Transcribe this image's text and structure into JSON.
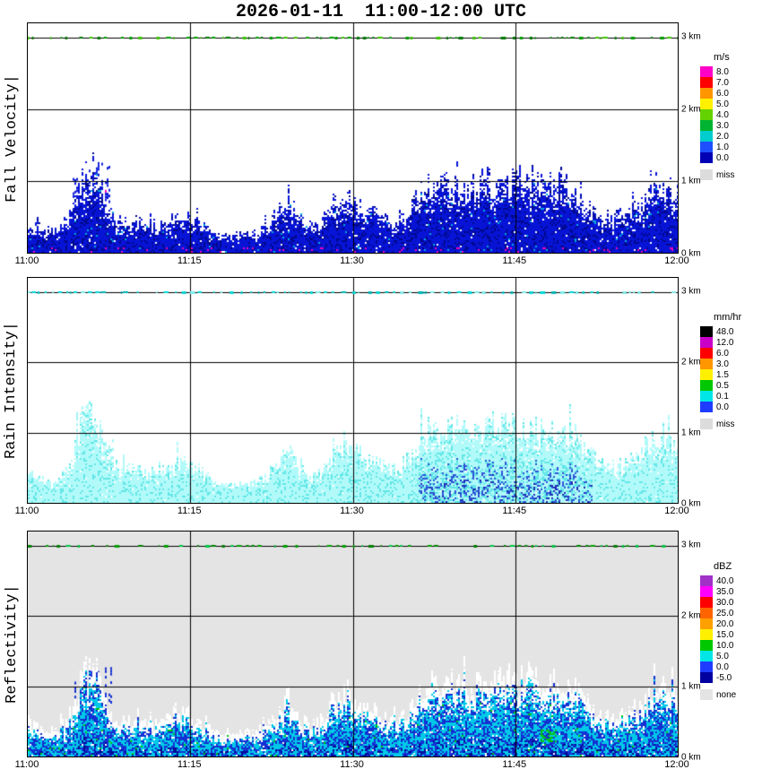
{
  "title": "2026-01-11  11:00-12:00 UTC",
  "chart_data": {
    "type": "heatmap",
    "description": "Micro rain radar time-height sections, three stacked panels sharing one time axis",
    "x_axis": {
      "ticks": [
        "11:00",
        "11:15",
        "11:30",
        "11:45",
        "12:00"
      ],
      "range_minutes": [
        0,
        60
      ],
      "grid_minutes": [
        15,
        30,
        45
      ]
    },
    "y_axis": {
      "ticks": [
        "0 km",
        "1 km",
        "2 km",
        "3 km"
      ],
      "max_km": 3.2,
      "grid_km": [
        1,
        2,
        3
      ]
    },
    "artifact_line_km": 3.0,
    "echo_top_km": [
      0.4,
      0.32,
      0.28,
      0.35,
      0.55,
      1.05,
      1.15,
      0.75,
      0.45,
      0.4,
      0.45,
      0.38,
      0.35,
      0.48,
      0.55,
      0.48,
      0.38,
      0.28,
      0.22,
      0.22,
      0.28,
      0.25,
      0.35,
      0.55,
      0.75,
      0.45,
      0.35,
      0.42,
      0.62,
      0.78,
      0.68,
      0.55,
      0.6,
      0.45,
      0.4,
      0.55,
      0.8,
      0.92,
      0.85,
      0.95,
      0.88,
      0.85,
      0.95,
      0.92,
      1.0,
      0.95,
      1.02,
      0.95,
      0.9,
      0.95,
      0.85,
      0.8,
      0.6,
      0.5,
      0.45,
      0.5,
      0.58,
      0.72,
      0.92,
      0.85,
      0.8
    ],
    "plume": {
      "start_min": 4.0,
      "end_min": 7.8,
      "top_km": 1.35
    },
    "panels": [
      {
        "name": "Fall Velocity",
        "ylabel": "Fall Velocity|",
        "unit": "m/s",
        "background": "#FFFFFF",
        "seed": 7,
        "env_scale": 1.0,
        "legend": [
          {
            "label": "8.0",
            "color": "#FF00C8"
          },
          {
            "label": "7.0",
            "color": "#FF0000"
          },
          {
            "label": "6.0",
            "color": "#FF9600"
          },
          {
            "label": "5.0",
            "color": "#FFF000"
          },
          {
            "label": "4.0",
            "color": "#64D200"
          },
          {
            "label": "3.0",
            "color": "#00B432"
          },
          {
            "label": "2.0",
            "color": "#00CDCD"
          },
          {
            "label": "1.0",
            "color": "#1E50FF"
          },
          {
            "label": "0.0",
            "color": "#0000B4"
          },
          {
            "label": "miss",
            "color": "#DCDCDC",
            "gap": true
          }
        ],
        "artifact_colors": [
          "#00A000",
          "#007800",
          "#3CC800"
        ],
        "style": {
          "mode": "velocity",
          "main": "#0714D6",
          "deep": "#00088C",
          "speck": "#00AADD",
          "hot": "#EE00BB",
          "plume": "#0F1EDC",
          "probs": [
            0.97,
            0.8,
            0.5
          ]
        }
      },
      {
        "name": "Rain Intensity",
        "ylabel": "Rain Intensity|",
        "unit": "mm/hr",
        "background": "#FFFFFF",
        "seed": 13,
        "env_scale": 1.06,
        "legend": [
          {
            "label": "48.0",
            "color": "#000000"
          },
          {
            "label": "12.0",
            "color": "#C800C8"
          },
          {
            "label": "6.0",
            "color": "#FF0000"
          },
          {
            "label": "3.0",
            "color": "#FF9600"
          },
          {
            "label": "1.5",
            "color": "#FFF000"
          },
          {
            "label": "0.5",
            "color": "#00C800"
          },
          {
            "label": "0.1",
            "color": "#00E6E6"
          },
          {
            "label": "0.0",
            "color": "#1E3CFF"
          },
          {
            "label": "miss",
            "color": "#DCDCDC",
            "gap": true
          }
        ],
        "artifact_colors": [
          "#00D8D8",
          "#7DEEEE",
          "#00B4B4"
        ],
        "style": {
          "mode": "rain",
          "main": "#B2FAFA",
          "mid": "#63E6E6",
          "core": "#2D55D8",
          "deep": "#1E2FB4",
          "plume": "#9FF4F4",
          "probs": [
            0.99,
            0.93,
            0.72
          ]
        }
      },
      {
        "name": "Reflectivity",
        "ylabel": "Reflectivity|",
        "unit": "dBZ",
        "background": "#E4E4E4",
        "seed": 21,
        "env_scale": 1.0,
        "legend": [
          {
            "label": "40.0",
            "color": "#A032C8"
          },
          {
            "label": "35.0",
            "color": "#FF00FF"
          },
          {
            "label": "30.0",
            "color": "#FF0000"
          },
          {
            "label": "25.0",
            "color": "#FF6400"
          },
          {
            "label": "20.0",
            "color": "#FFA000"
          },
          {
            "label": "15.0",
            "color": "#FFF000"
          },
          {
            "label": "10.0",
            "color": "#00C800"
          },
          {
            "label": "5.0",
            "color": "#00E6E6"
          },
          {
            "label": "0.0",
            "color": "#1E3CFF"
          },
          {
            "label": "-5.0",
            "color": "#0000A0"
          },
          {
            "label": "none",
            "color": "#E4E4E4",
            "gap": true
          }
        ],
        "artifact_colors": [
          "#00A000",
          "#00C846",
          "#008000"
        ],
        "style": {
          "mode": "refl",
          "main": "#00C8E8",
          "alt": "#1430D2",
          "deep": "#000A96",
          "green": "#00C414",
          "plume": "#1430D2",
          "probs": [
            0.97,
            0.85,
            0.55
          ]
        }
      }
    ]
  }
}
